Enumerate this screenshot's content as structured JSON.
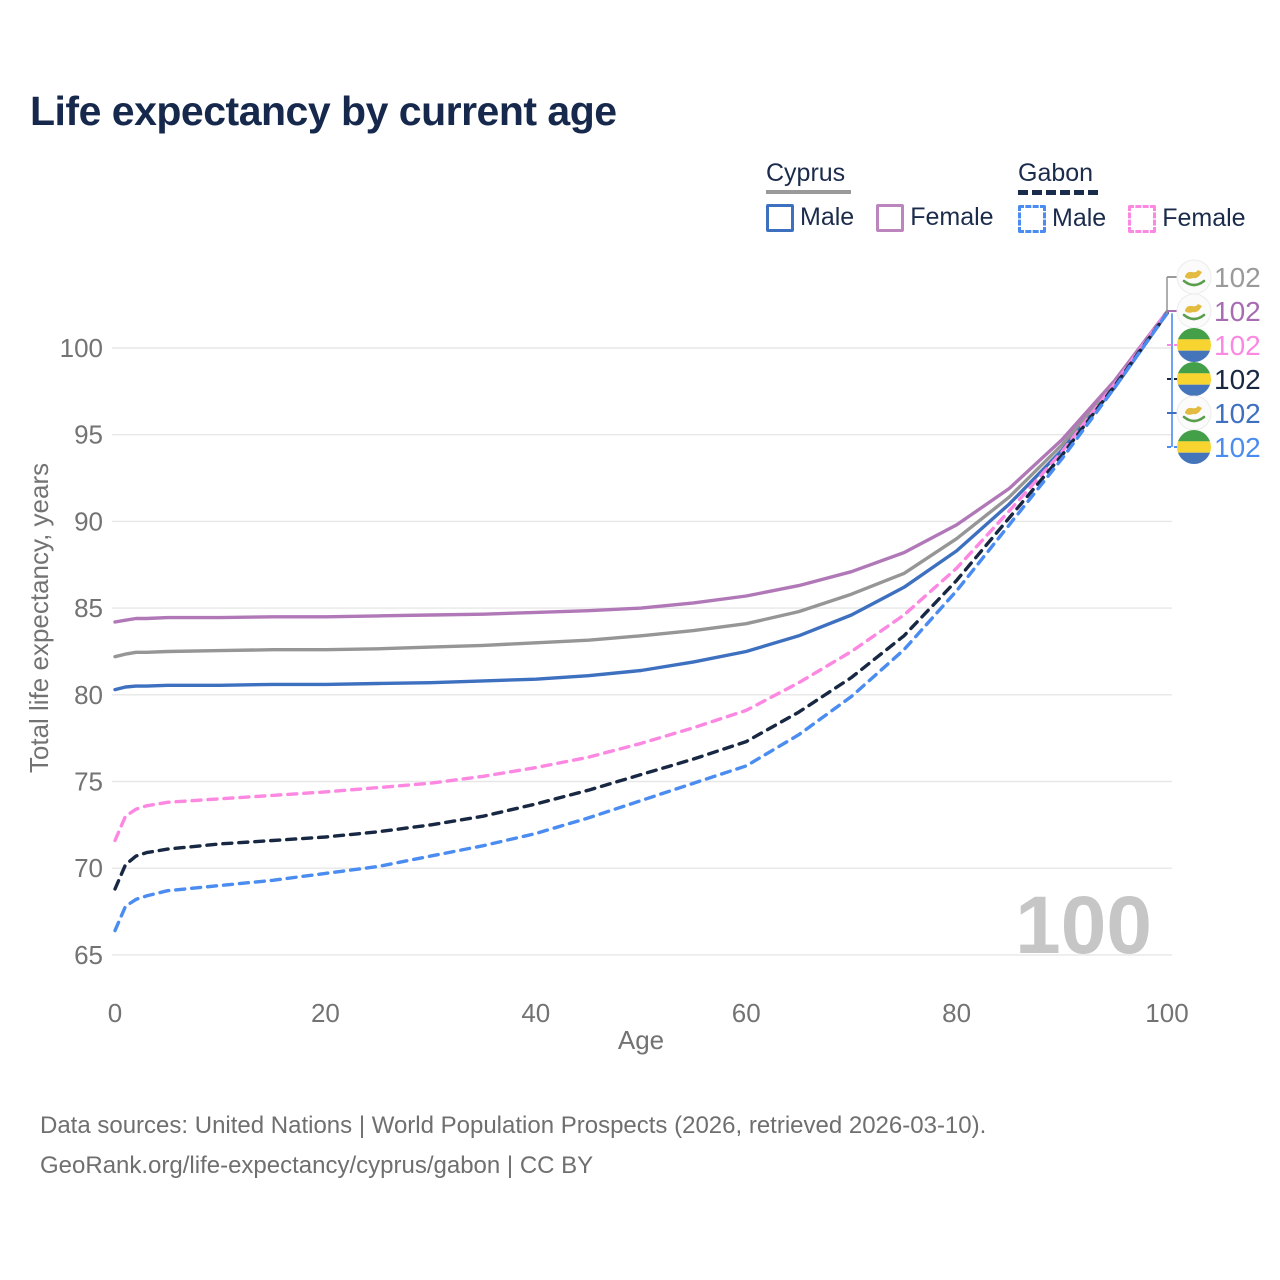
{
  "title": "Life expectancy by current age",
  "legend": {
    "cyprus_label": "Cyprus",
    "gabon_label": "Gabon",
    "cyprus_male_label": "Male",
    "cyprus_female_label": "Female",
    "gabon_male_label": "Male",
    "gabon_female_label": "Female"
  },
  "colors": {
    "cyprus_male": "#3e70c0",
    "cyprus_female": "#b178b8",
    "cyprus_all": "#969696",
    "gabon_male": "#4a8cf0",
    "gabon_female": "#fc88e2",
    "gabon_all": "#182843",
    "grid": "#e7e7e7",
    "axis_text": "#737373",
    "watermark_text": "#c6c6c6",
    "title_text": "#16294c"
  },
  "watermark": "100",
  "end_labels": [
    {
      "series": "cyprus-all",
      "flag": "cyprus",
      "value": "102",
      "color": "#9a9a9a"
    },
    {
      "series": "cyprus-female",
      "flag": "cyprus",
      "value": "102",
      "color": "#a76cb2"
    },
    {
      "series": "gabon-female",
      "flag": "gabon",
      "value": "102",
      "color": "#fc88e2"
    },
    {
      "series": "gabon-all",
      "flag": "gabon",
      "value": "102",
      "color": "#182843"
    },
    {
      "series": "cyprus-male",
      "flag": "cyprus",
      "value": "102",
      "color": "#3e70c0"
    },
    {
      "series": "gabon-male",
      "flag": "gabon",
      "value": "102",
      "color": "#4a8cf0"
    }
  ],
  "footer": {
    "line1": "Data sources: United Nations | World Population Prospects (2026, retrieved 2026-03-10).",
    "line2": "GeoRank.org/life-expectancy/cyprus/gabon | CC BY"
  },
  "chart_data": {
    "type": "line",
    "title": "Life expectancy by current age",
    "xlabel": "Age",
    "ylabel": "Total life expectancy, years",
    "xlim": [
      0,
      100
    ],
    "ylim": [
      65,
      102.5
    ],
    "xticks": [
      0,
      20,
      40,
      60,
      80,
      100
    ],
    "yticks": [
      65,
      70,
      75,
      80,
      85,
      90,
      95,
      100
    ],
    "grid": "horizontal",
    "legend_position": "top-right",
    "ages": [
      0,
      1,
      2,
      3,
      5,
      10,
      15,
      20,
      25,
      30,
      35,
      40,
      45,
      50,
      55,
      60,
      65,
      70,
      75,
      80,
      85,
      90,
      95,
      100
    ],
    "series": [
      {
        "name": "Cyprus Both sexes",
        "country": "Cyprus",
        "sex": "all",
        "color": "#969696",
        "dashed": false,
        "values": [
          82.2,
          82.35,
          82.45,
          82.45,
          82.5,
          82.55,
          82.6,
          82.6,
          82.65,
          82.75,
          82.85,
          83.0,
          83.15,
          83.4,
          83.7,
          84.1,
          84.8,
          85.8,
          87.0,
          89.0,
          91.4,
          94.4,
          97.9,
          102.05
        ]
      },
      {
        "name": "Cyprus Female",
        "country": "Cyprus",
        "sex": "female",
        "color": "#b178b8",
        "dashed": false,
        "values": [
          84.2,
          84.3,
          84.4,
          84.4,
          84.45,
          84.45,
          84.5,
          84.5,
          84.55,
          84.6,
          84.65,
          84.75,
          84.85,
          85.0,
          85.3,
          85.7,
          86.3,
          87.1,
          88.2,
          89.8,
          91.9,
          94.7,
          98.1,
          102.1
        ]
      },
      {
        "name": "Cyprus Male",
        "country": "Cyprus",
        "sex": "male",
        "color": "#3e70c0",
        "dashed": false,
        "values": [
          80.3,
          80.45,
          80.5,
          80.5,
          80.55,
          80.55,
          80.6,
          80.6,
          80.65,
          80.7,
          80.8,
          80.9,
          81.1,
          81.4,
          81.9,
          82.5,
          83.4,
          84.6,
          86.2,
          88.3,
          91.0,
          94.1,
          97.7,
          102.0
        ]
      },
      {
        "name": "Gabon Female",
        "country": "Gabon",
        "sex": "female",
        "color": "#fc88e2",
        "dashed": true,
        "values": [
          71.6,
          73.0,
          73.4,
          73.6,
          73.8,
          74.0,
          74.2,
          74.4,
          74.65,
          74.9,
          75.3,
          75.8,
          76.4,
          77.2,
          78.1,
          79.1,
          80.7,
          82.5,
          84.6,
          87.3,
          90.6,
          94.0,
          97.9,
          102.1
        ]
      },
      {
        "name": "Gabon Both sexes",
        "country": "Gabon",
        "sex": "all",
        "color": "#182843",
        "dashed": true,
        "values": [
          68.8,
          70.2,
          70.7,
          70.9,
          71.1,
          71.4,
          71.6,
          71.8,
          72.1,
          72.5,
          73.0,
          73.7,
          74.5,
          75.4,
          76.3,
          77.3,
          79.0,
          81.0,
          83.4,
          86.6,
          90.2,
          93.8,
          97.8,
          102.0
        ]
      },
      {
        "name": "Gabon Male",
        "country": "Gabon",
        "sex": "male",
        "color": "#4a8cf0",
        "dashed": true,
        "values": [
          66.4,
          67.8,
          68.2,
          68.4,
          68.7,
          69.0,
          69.3,
          69.7,
          70.1,
          70.7,
          71.3,
          72.0,
          72.9,
          73.9,
          74.9,
          75.9,
          77.7,
          79.9,
          82.6,
          86.0,
          89.8,
          93.6,
          97.7,
          102.0
        ]
      }
    ]
  }
}
